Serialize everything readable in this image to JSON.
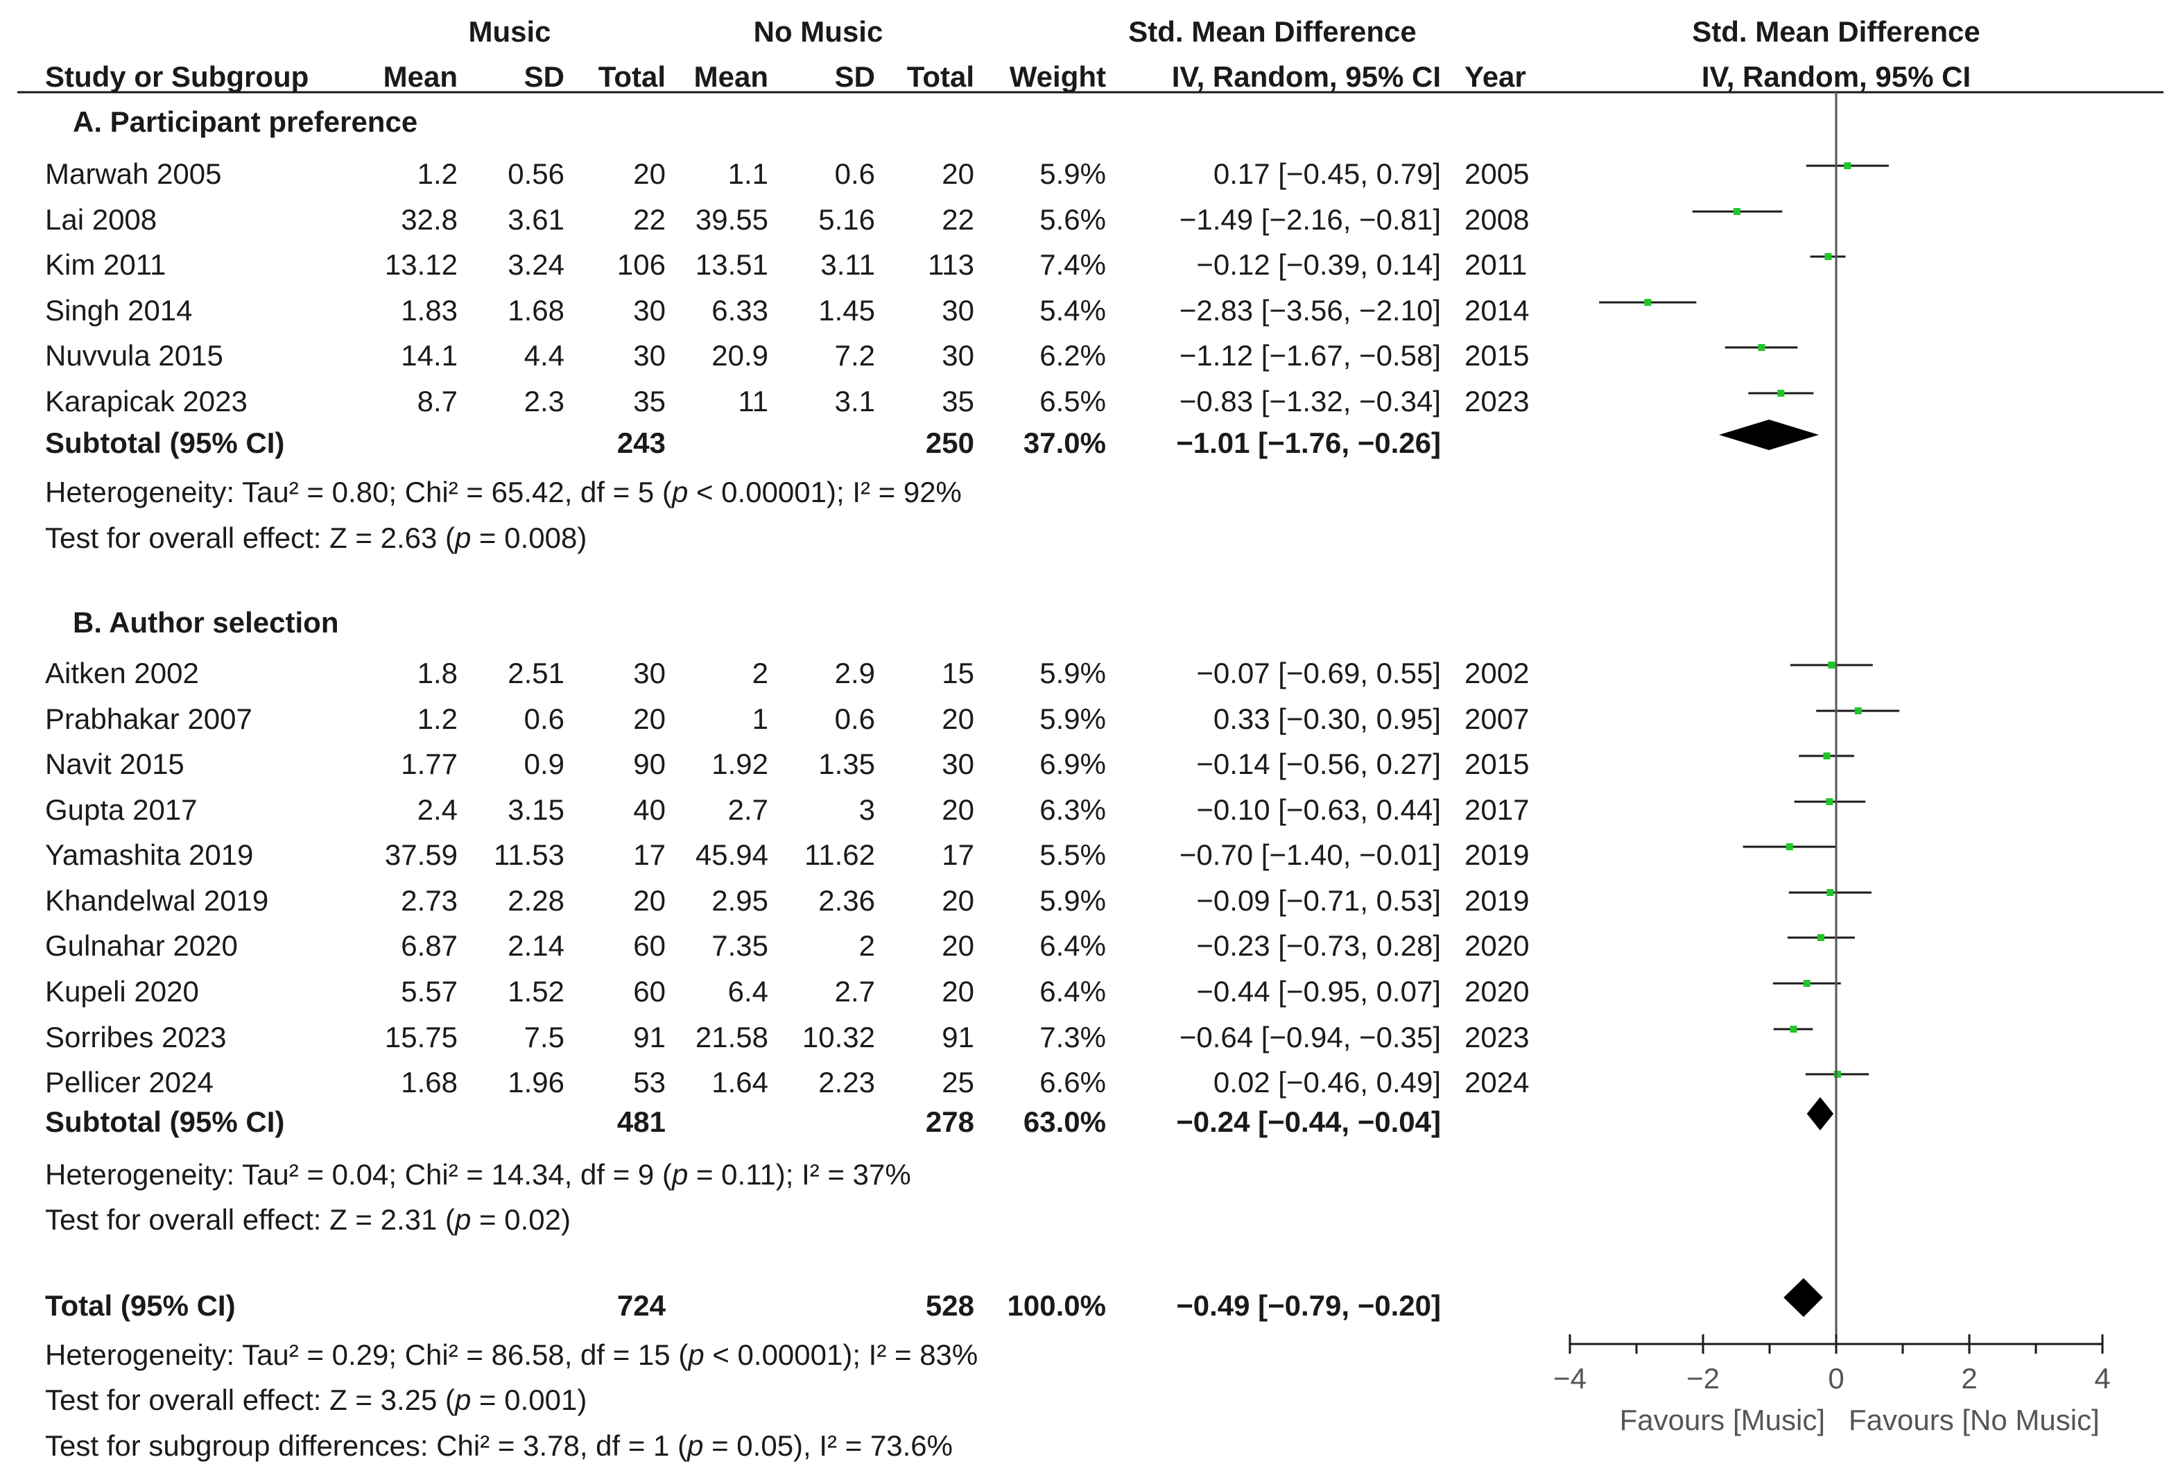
{
  "header": {
    "group_music": "Music",
    "group_no_music": "No Music",
    "smd_title": "Std. Mean Difference",
    "plot_title": "Std. Mean Difference",
    "col_study": "Study or Subgroup",
    "col_mean": "Mean",
    "col_sd": "SD",
    "col_total": "Total",
    "col_weight": "Weight",
    "col_ci": "IV, Random, 95% CI",
    "col_year": "Year",
    "plot_ci": "IV, Random, 95% CI"
  },
  "chart_data": {
    "type": "forest",
    "measure": "Std. Mean Difference",
    "xlim": [
      -4,
      4
    ],
    "xticks": [
      -4,
      -2,
      0,
      2,
      4
    ],
    "xtick_labels": [
      "−4",
      "−2",
      "0",
      "2",
      "4"
    ],
    "favours_left": "Favours [Music]",
    "favours_right": "Favours [No Music]",
    "subgroups": [
      {
        "label": "A.  Participant preference",
        "studies": [
          {
            "name": "Marwah 2005",
            "m1": "1.2",
            "sd1": "0.56",
            "n1": "20",
            "m2": "1.1",
            "sd2": "0.6",
            "n2": "20",
            "weight": "5.9%",
            "ci": "0.17 [−0.45, 0.79]",
            "year": "2005",
            "est": 0.17,
            "lo": -0.45,
            "hi": 0.79
          },
          {
            "name": "Lai 2008",
            "m1": "32.8",
            "sd1": "3.61",
            "n1": "22",
            "m2": "39.55",
            "sd2": "5.16",
            "n2": "22",
            "weight": "5.6%",
            "ci": "−1.49 [−2.16, −0.81]",
            "year": "2008",
            "est": -1.49,
            "lo": -2.16,
            "hi": -0.81
          },
          {
            "name": "Kim 2011",
            "m1": "13.12",
            "sd1": "3.24",
            "n1": "106",
            "m2": "13.51",
            "sd2": "3.11",
            "n2": "113",
            "weight": "7.4%",
            "ci": "−0.12 [−0.39, 0.14]",
            "year": "2011",
            "est": -0.12,
            "lo": -0.39,
            "hi": 0.14
          },
          {
            "name": "Singh 2014",
            "m1": "1.83",
            "sd1": "1.68",
            "n1": "30",
            "m2": "6.33",
            "sd2": "1.45",
            "n2": "30",
            "weight": "5.4%",
            "ci": "−2.83 [−3.56, −2.10]",
            "year": "2014",
            "est": -2.83,
            "lo": -3.56,
            "hi": -2.1
          },
          {
            "name": "Nuvvula 2015",
            "m1": "14.1",
            "sd1": "4.4",
            "n1": "30",
            "m2": "20.9",
            "sd2": "7.2",
            "n2": "30",
            "weight": "6.2%",
            "ci": "−1.12 [−1.67, −0.58]",
            "year": "2015",
            "est": -1.12,
            "lo": -1.67,
            "hi": -0.58
          },
          {
            "name": "Karapicak 2023",
            "m1": "8.7",
            "sd1": "2.3",
            "n1": "35",
            "m2": "11",
            "sd2": "3.1",
            "n2": "35",
            "weight": "6.5%",
            "ci": "−0.83 [−1.32, −0.34]",
            "year": "2023",
            "est": -0.83,
            "lo": -1.32,
            "hi": -0.34
          }
        ],
        "subtotal": {
          "label": "Subtotal (95% CI)",
          "n1": "243",
          "n2": "250",
          "weight": "37.0%",
          "ci": "−1.01 [−1.76, −0.26]",
          "est": -1.01,
          "lo": -1.76,
          "hi": -0.26
        },
        "heterogeneity": "Heterogeneity: Tau² = 0.80; Chi² = 65.42, df = 5 (p < 0.00001); I² = 92%",
        "overall_effect": "Test for overall effect: Z = 2.63 (p = 0.008)"
      },
      {
        "label": "B.  Author selection",
        "studies": [
          {
            "name": "Aitken 2002",
            "m1": "1.8",
            "sd1": "2.51",
            "n1": "30",
            "m2": "2",
            "sd2": "2.9",
            "n2": "15",
            "weight": "5.9%",
            "ci": "−0.07 [−0.69, 0.55]",
            "year": "2002",
            "est": -0.07,
            "lo": -0.69,
            "hi": 0.55
          },
          {
            "name": "Prabhakar 2007",
            "m1": "1.2",
            "sd1": "0.6",
            "n1": "20",
            "m2": "1",
            "sd2": "0.6",
            "n2": "20",
            "weight": "5.9%",
            "ci": "0.33 [−0.30, 0.95]",
            "year": "2007",
            "est": 0.33,
            "lo": -0.3,
            "hi": 0.95
          },
          {
            "name": "Navit 2015",
            "m1": "1.77",
            "sd1": "0.9",
            "n1": "90",
            "m2": "1.92",
            "sd2": "1.35",
            "n2": "30",
            "weight": "6.9%",
            "ci": "−0.14 [−0.56, 0.27]",
            "year": "2015",
            "est": -0.14,
            "lo": -0.56,
            "hi": 0.27
          },
          {
            "name": "Gupta 2017",
            "m1": "2.4",
            "sd1": "3.15",
            "n1": "40",
            "m2": "2.7",
            "sd2": "3",
            "n2": "20",
            "weight": "6.3%",
            "ci": "−0.10 [−0.63, 0.44]",
            "year": "2017",
            "est": -0.1,
            "lo": -0.63,
            "hi": 0.44
          },
          {
            "name": "Yamashita 2019",
            "m1": "37.59",
            "sd1": "11.53",
            "n1": "17",
            "m2": "45.94",
            "sd2": "11.62",
            "n2": "17",
            "weight": "5.5%",
            "ci": "−0.70 [−1.40, −0.01]",
            "year": "2019",
            "est": -0.7,
            "lo": -1.4,
            "hi": -0.01
          },
          {
            "name": "Khandelwal 2019",
            "m1": "2.73",
            "sd1": "2.28",
            "n1": "20",
            "m2": "2.95",
            "sd2": "2.36",
            "n2": "20",
            "weight": "5.9%",
            "ci": "−0.09 [−0.71, 0.53]",
            "year": "2019",
            "est": -0.09,
            "lo": -0.71,
            "hi": 0.53
          },
          {
            "name": "Gulnahar 2020",
            "m1": "6.87",
            "sd1": "2.14",
            "n1": "60",
            "m2": "7.35",
            "sd2": "2",
            "n2": "20",
            "weight": "6.4%",
            "ci": "−0.23 [−0.73, 0.28]",
            "year": "2020",
            "est": -0.23,
            "lo": -0.73,
            "hi": 0.28
          },
          {
            "name": "Kupeli 2020",
            "m1": "5.57",
            "sd1": "1.52",
            "n1": "60",
            "m2": "6.4",
            "sd2": "2.7",
            "n2": "20",
            "weight": "6.4%",
            "ci": "−0.44 [−0.95, 0.07]",
            "year": "2020",
            "est": -0.44,
            "lo": -0.95,
            "hi": 0.07
          },
          {
            "name": "Sorribes 2023",
            "m1": "15.75",
            "sd1": "7.5",
            "n1": "91",
            "m2": "21.58",
            "sd2": "10.32",
            "n2": "91",
            "weight": "7.3%",
            "ci": "−0.64 [−0.94, −0.35]",
            "year": "2023",
            "est": -0.64,
            "lo": -0.94,
            "hi": -0.35
          },
          {
            "name": "Pellicer 2024",
            "m1": "1.68",
            "sd1": "1.96",
            "n1": "53",
            "m2": "1.64",
            "sd2": "2.23",
            "n2": "25",
            "weight": "6.6%",
            "ci": "0.02 [−0.46, 0.49]",
            "year": "2024",
            "est": 0.02,
            "lo": -0.46,
            "hi": 0.49
          }
        ],
        "subtotal": {
          "label": "Subtotal (95% CI)",
          "n1": "481",
          "n2": "278",
          "weight": "63.0%",
          "ci": "−0.24 [−0.44, −0.04]",
          "est": -0.24,
          "lo": -0.44,
          "hi": -0.04
        },
        "heterogeneity": "Heterogeneity: Tau² = 0.04; Chi² = 14.34, df = 9 (p = 0.11); I² = 37%",
        "overall_effect": "Test for overall effect: Z = 2.31 (p = 0.02)"
      }
    ],
    "total": {
      "label": "Total (95% CI)",
      "n1": "724",
      "n2": "528",
      "weight": "100.0%",
      "ci": "−0.49 [−0.79, −0.20]",
      "est": -0.49,
      "lo": -0.79,
      "hi": -0.2
    },
    "total_heterogeneity": "Heterogeneity: Tau² = 0.29; Chi² = 86.58, df = 15 (p < 0.00001); I² = 83%",
    "total_overall_effect": "Test for overall effect: Z = 3.25 (p = 0.001)",
    "subgroup_differences": "Test for subgroup differences: Chi² = 3.78, df = 1 (p = 0.05), I² = 73.6%"
  },
  "colors": {
    "marker": "#22c52a",
    "line": "#1a1a1a",
    "axis": "#555555",
    "diamond": "#000000"
  }
}
